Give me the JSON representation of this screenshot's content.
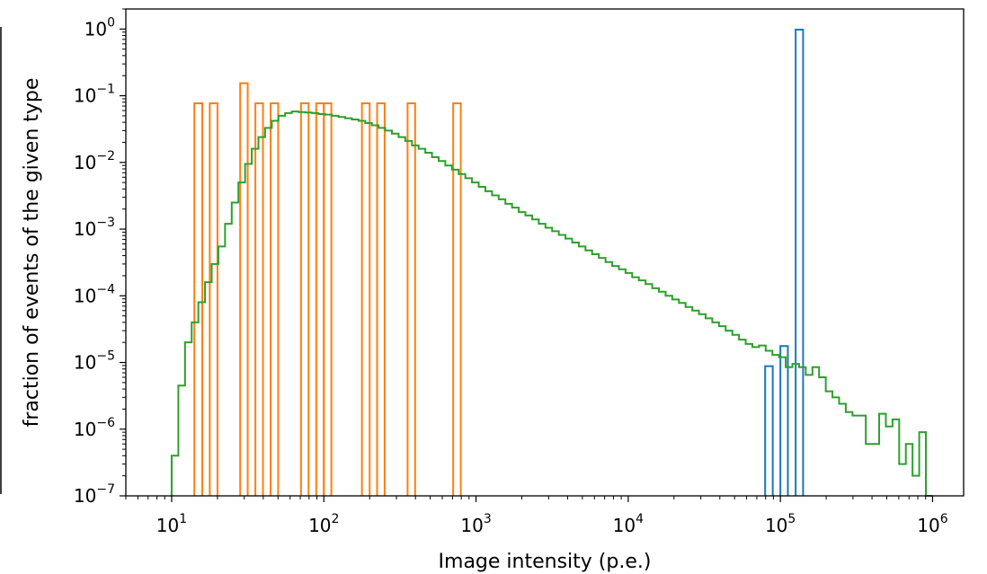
{
  "chart_data": {
    "type": "histogram",
    "title": "",
    "xlabel": "Image intensity (p.e.)",
    "ylabel": "fraction of events of the given type",
    "xscale": "log",
    "yscale": "log",
    "xlim": [
      5,
      1600000
    ],
    "ylim": [
      1e-07,
      2
    ],
    "grid": false,
    "legend": "none",
    "x_ticks": [
      {
        "value": 10,
        "base": "10",
        "exp": "1"
      },
      {
        "value": 100,
        "base": "10",
        "exp": "2"
      },
      {
        "value": 1000,
        "base": "10",
        "exp": "3"
      },
      {
        "value": 10000,
        "base": "10",
        "exp": "4"
      },
      {
        "value": 100000,
        "base": "10",
        "exp": "5"
      },
      {
        "value": 1000000,
        "base": "10",
        "exp": "6"
      }
    ],
    "y_ticks": [
      {
        "value": 1,
        "base": "10",
        "exp": "0"
      },
      {
        "value": 0.1,
        "base": "10",
        "exp": "−1"
      },
      {
        "value": 0.01,
        "base": "10",
        "exp": "−2"
      },
      {
        "value": 0.001,
        "base": "10",
        "exp": "−3"
      },
      {
        "value": 0.0001,
        "base": "10",
        "exp": "−4"
      },
      {
        "value": 1e-05,
        "base": "10",
        "exp": "−5"
      },
      {
        "value": 1e-06,
        "base": "10",
        "exp": "−6"
      },
      {
        "value": 1e-07,
        "base": "10",
        "exp": "−7"
      }
    ],
    "series": [
      {
        "color": "#ff7f0e",
        "bins": [
          {
            "x0": 14.1,
            "x1": 15.9,
            "y": 0.077
          },
          {
            "x0": 17.8,
            "x1": 20.0,
            "y": 0.077
          },
          {
            "x0": 28.2,
            "x1": 31.6,
            "y": 0.154
          },
          {
            "x0": 35.5,
            "x1": 39.8,
            "y": 0.077
          },
          {
            "x0": 44.7,
            "x1": 50.1,
            "y": 0.077
          },
          {
            "x0": 70.8,
            "x1": 79.4,
            "y": 0.077
          },
          {
            "x0": 89.1,
            "x1": 100,
            "y": 0.077
          },
          {
            "x0": 100,
            "x1": 112,
            "y": 0.077
          },
          {
            "x0": 178,
            "x1": 200,
            "y": 0.077
          },
          {
            "x0": 224,
            "x1": 251,
            "y": 0.077
          },
          {
            "x0": 355,
            "x1": 398,
            "y": 0.077
          },
          {
            "x0": 708,
            "x1": 794,
            "y": 0.077
          }
        ]
      },
      {
        "color": "#1f77b4",
        "bins": [
          {
            "x0": 79400,
            "x1": 89100,
            "y": 8.8e-06
          },
          {
            "x0": 100000,
            "x1": 112000,
            "y": 1.76e-05
          },
          {
            "x0": 126000,
            "x1": 141000,
            "y": 0.98
          }
        ]
      },
      {
        "color": "#2ca02c",
        "edge_start": 10,
        "edge_end": 1000000,
        "values": [
          4e-07,
          4.5e-06,
          2e-05,
          4e-05,
          8e-05,
          0.00016,
          0.0003,
          0.00055,
          0.0012,
          0.0025,
          0.005,
          0.0095,
          0.016,
          0.024,
          0.033,
          0.042,
          0.05,
          0.055,
          0.058,
          0.057,
          0.056,
          0.055,
          0.053,
          0.052,
          0.05,
          0.048,
          0.046,
          0.044,
          0.042,
          0.039,
          0.036,
          0.033,
          0.03,
          0.027,
          0.024,
          0.021,
          0.018,
          0.016,
          0.014,
          0.012,
          0.0105,
          0.009,
          0.0078,
          0.0067,
          0.0058,
          0.005,
          0.0043,
          0.0037,
          0.0032,
          0.0028,
          0.0024,
          0.0021,
          0.0018,
          0.0016,
          0.0014,
          0.0012,
          0.00105,
          0.00093,
          0.00082,
          0.00072,
          0.00063,
          0.00055,
          0.00048,
          0.00042,
          0.00037,
          0.00032,
          0.00028,
          0.00025,
          0.00022,
          0.00019,
          0.00017,
          0.00015,
          0.00013,
          0.000115,
          0.0001,
          8.8e-05,
          7.8e-05,
          6.8e-05,
          6e-05,
          5.3e-05,
          4.6e-05,
          4e-05,
          3.5e-05,
          3e-05,
          2.6e-05,
          2.2e-05,
          1.9e-05,
          1.7e-05,
          1.8e-05,
          1.5e-05,
          1.3e-05,
          1.2e-05,
          8.5e-06,
          9.5e-06,
          8.5e-06,
          6.5e-06,
          8.5e-06,
          6e-06,
          3.7e-06,
          3e-06,
          2.4e-06,
          1.8e-06,
          1.6e-06,
          1.6e-06,
          6e-07,
          6e-07,
          1.7e-06,
          1.1e-06,
          1.4e-06,
          3e-07,
          6e-07,
          2e-07,
          9e-07,
          1e-07
        ]
      }
    ]
  }
}
